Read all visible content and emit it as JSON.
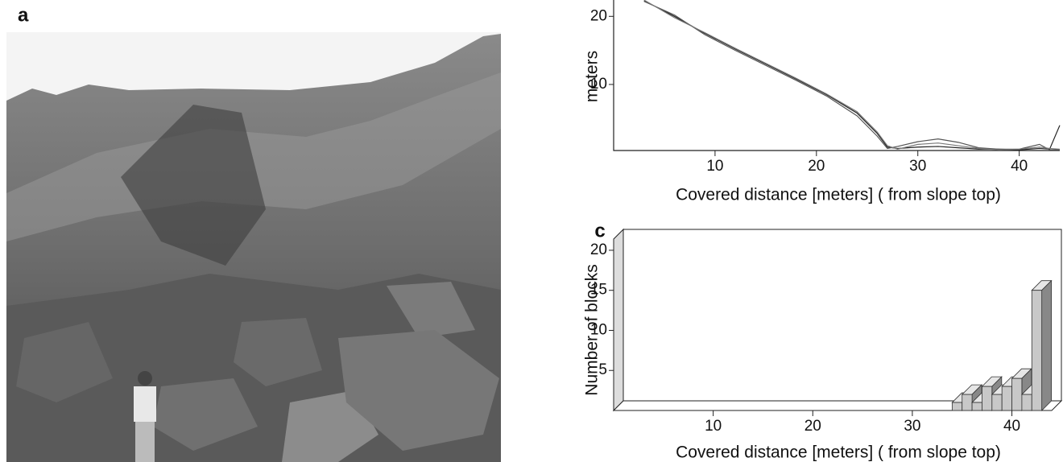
{
  "photo": {
    "label": "a"
  },
  "chart_data": [
    {
      "type": "line",
      "y_label": "meters",
      "x_label": "Covered distance [meters] ( from slope top)",
      "x": [
        3,
        6,
        9,
        12,
        15,
        18,
        21,
        24,
        26,
        27,
        28,
        30,
        32,
        34,
        36,
        38,
        40,
        42,
        43,
        44
      ],
      "series": [
        {
          "color": "#222222",
          "values": [
            22.3,
            20,
            17.5,
            15.2,
            13,
            10.8,
            8.5,
            5.8,
            2.8,
            0.8,
            0.6,
            0.8,
            0.9,
            0.7,
            0.5,
            0.5,
            0.4,
            0.6,
            0.5,
            4
          ]
        },
        {
          "color": "#555555",
          "values": [
            22.2,
            20.2,
            17.3,
            15,
            12.8,
            10.6,
            8.3,
            5.4,
            2.4,
            0.6,
            0.9,
            1.6,
            2.0,
            1.5,
            0.7,
            0.5,
            0.5,
            1.2,
            0.4,
            0.4
          ]
        },
        {
          "color": "#777777",
          "values": [
            22.4,
            19.8,
            17.6,
            15.3,
            13.1,
            10.9,
            8.6,
            6.0,
            3.0,
            1.0,
            0.5,
            1.2,
            1.4,
            1.0,
            0.6,
            0.4,
            0.5,
            0.8,
            0.6,
            0.5
          ]
        }
      ],
      "xlim": [
        0,
        44
      ],
      "ylim": [
        0.3,
        22.4
      ],
      "xticks": [
        10,
        20,
        30,
        40
      ],
      "yticks": [
        10,
        20
      ]
    },
    {
      "type": "histogram",
      "panel_label": "c",
      "y_label": "Number of blocks",
      "x_label": "Covered distance [meters] ( from slope top)",
      "bins": [
        34,
        35,
        36,
        37,
        38,
        39,
        40,
        41,
        42,
        43
      ],
      "values": [
        1,
        2,
        1,
        3,
        2,
        3,
        4,
        2,
        15
      ],
      "color": "#c8c8c8",
      "xlim": [
        0,
        44
      ],
      "ylim": [
        0,
        21.4
      ],
      "xticks": [
        10,
        20,
        30,
        40
      ],
      "yticks": [
        5,
        10,
        15,
        20
      ]
    }
  ]
}
